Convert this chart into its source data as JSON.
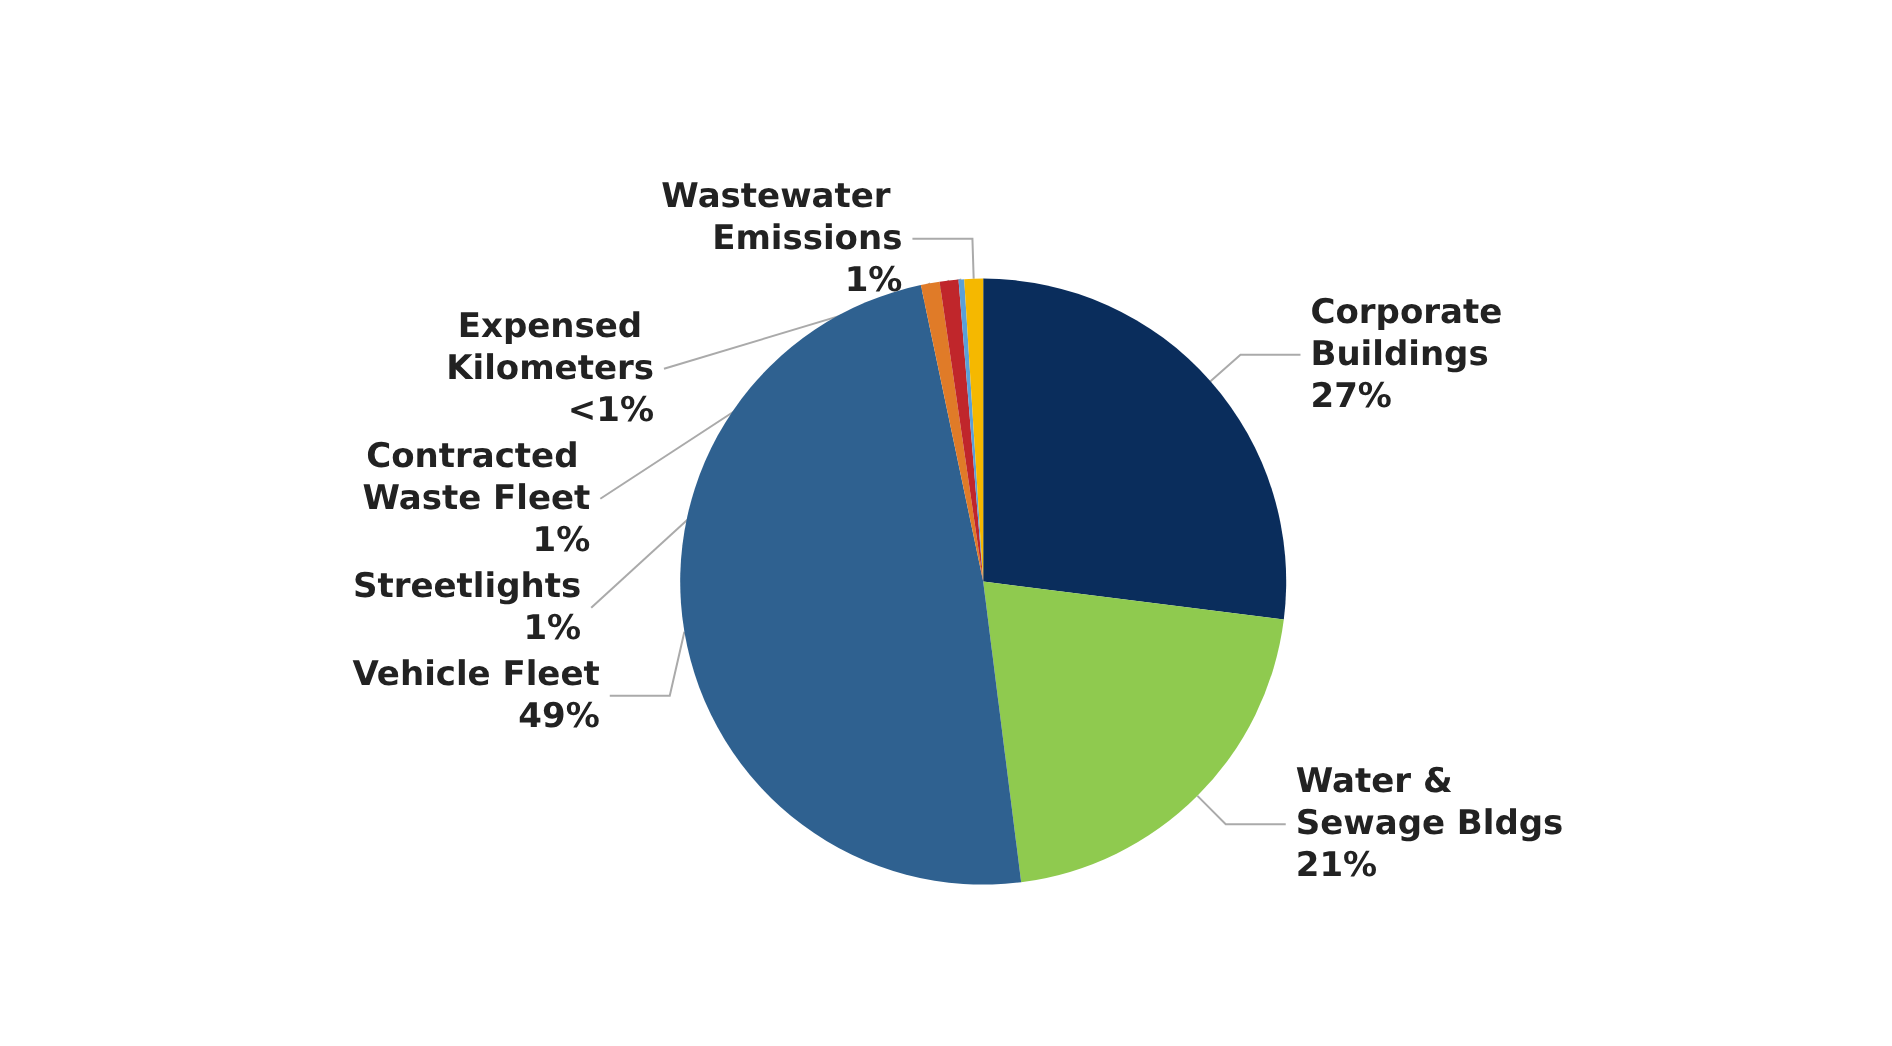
{
  "chart_data": {
    "type": "pie",
    "categories": [
      "Corporate Buildings",
      "Water & Sewage Bldgs",
      "Vehicle Fleet",
      "Contracted Waste Fleet",
      "Streetlights",
      "Expensed Kilometers",
      "Wastewater Emissions"
    ],
    "values": [
      27,
      21,
      48.7,
      1,
      1,
      0.3,
      1
    ],
    "value_labels": [
      "27%",
      "21%",
      "49%",
      "1%",
      "1%",
      "<1%",
      "1%"
    ],
    "colors": [
      "#0a2d5c",
      "#8fca4f",
      "#2f6190",
      "#e07b28",
      "#c0262b",
      "#5aa0d8",
      "#f5b800"
    ],
    "legend": false
  }
}
